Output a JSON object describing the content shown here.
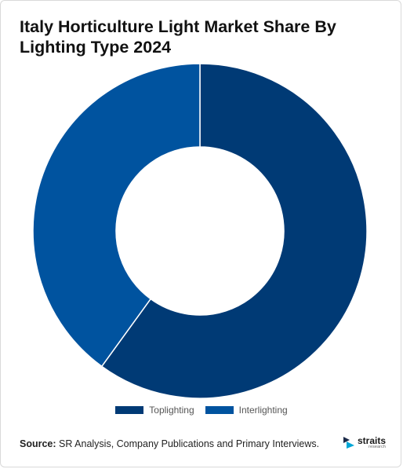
{
  "chart_data": {
    "type": "pie",
    "title": "Italy Horticulture Light Market Share By Lighting Type 2024",
    "categories": [
      "Toplighting",
      "Interlighting"
    ],
    "values": [
      60,
      40
    ],
    "colors": [
      "#003a75",
      "#00539f"
    ],
    "donut": true,
    "legend_position": "bottom"
  },
  "legend": {
    "items": [
      "Toplighting",
      "Interlighting"
    ]
  },
  "source": {
    "label": "Source:",
    "text": " SR Analysis, Company Publications and Primary Interviews."
  },
  "logo": {
    "word": "straits",
    "sub": "research"
  }
}
